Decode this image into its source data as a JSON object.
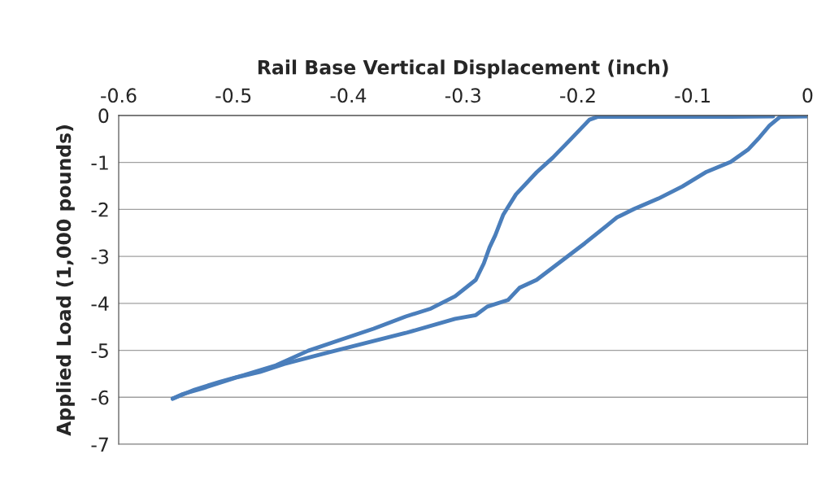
{
  "chart_data": {
    "type": "line",
    "xlabel": "Rail Base Vertical Displacement (inch)",
    "ylabel": "Applied Load (1,000 pounds)",
    "xlim": [
      -0.6,
      0
    ],
    "xticks": [
      -0.6,
      -0.5,
      -0.4,
      -0.3,
      -0.2,
      -0.1,
      0
    ],
    "ylim": [
      -7,
      0
    ],
    "yticks": [
      -7,
      -6,
      -5,
      -4,
      -3,
      -2,
      -1,
      0
    ],
    "grid": "y",
    "marker": "none",
    "line_style": "solid",
    "series": [
      {
        "color": "#4a7ebb",
        "x": [
          0,
          -0.024,
          -0.033,
          -0.042,
          -0.052,
          -0.067,
          -0.088,
          -0.109,
          -0.13,
          -0.151,
          -0.166,
          -0.176,
          -0.194,
          -0.208,
          -0.222,
          -0.236,
          -0.251,
          -0.261,
          -0.279,
          -0.289,
          -0.307,
          -0.35,
          -0.392,
          -0.42,
          -0.456,
          -0.477,
          -0.498,
          -0.527,
          -0.544,
          -0.553
        ],
        "values": [
          -0.02,
          -0.03,
          -0.21,
          -0.47,
          -0.73,
          -0.99,
          -1.2,
          -1.51,
          -1.77,
          -1.99,
          -2.17,
          -2.37,
          -2.72,
          -2.98,
          -3.24,
          -3.5,
          -3.67,
          -3.93,
          -4.07,
          -4.25,
          -4.33,
          -4.63,
          -4.89,
          -5.06,
          -5.29,
          -5.46,
          -5.58,
          -5.81,
          -5.93,
          -6.03
        ]
      },
      {
        "color": "#4a7ebb",
        "x": [
          -0.553,
          -0.534,
          -0.512,
          -0.491,
          -0.463,
          -0.435,
          -0.406,
          -0.378,
          -0.35,
          -0.328,
          -0.307,
          -0.289,
          -0.282,
          -0.277,
          -0.272,
          -0.265,
          -0.254,
          -0.236,
          -0.222,
          -0.208,
          -0.19,
          -0.183,
          -0.137,
          -0.067,
          -0.03
        ],
        "values": [
          -6.03,
          -5.84,
          -5.67,
          -5.53,
          -5.32,
          -5.01,
          -4.77,
          -4.54,
          -4.28,
          -4.11,
          -3.85,
          -3.5,
          -3.15,
          -2.81,
          -2.55,
          -2.11,
          -1.68,
          -1.21,
          -0.9,
          -0.55,
          -0.09,
          -0.03,
          -0.03,
          -0.03,
          -0.02
        ]
      }
    ]
  }
}
